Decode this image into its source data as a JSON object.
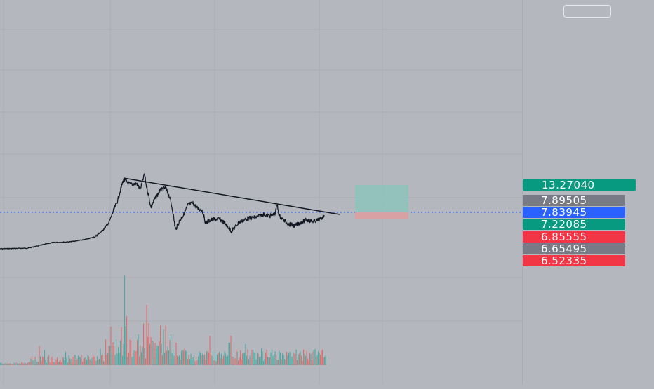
{
  "chart_data": {
    "type": "line",
    "title": "",
    "xlabel": "",
    "ylabel": "",
    "current_price": 7.83945,
    "price_labels": [
      {
        "value": "13.27040",
        "color": "#089981"
      },
      {
        "value": "7.89505",
        "color": "#787b86"
      },
      {
        "value": "7.83945",
        "color": "#2962ff"
      },
      {
        "value": "7.22085",
        "color": "#089981"
      },
      {
        "value": "6.85555",
        "color": "#f23645"
      },
      {
        "value": "6.65495",
        "color": "#787b86"
      },
      {
        "value": "6.52335",
        "color": "#f23645"
      }
    ],
    "trendline": "descending resistance from the peak",
    "position_tool": {
      "profit_color": "#8fc2bb",
      "loss_color": "#d8a1a4"
    },
    "volume_colors": {
      "up": "#26a69a",
      "down": "#ef5350"
    },
    "grid": true
  }
}
